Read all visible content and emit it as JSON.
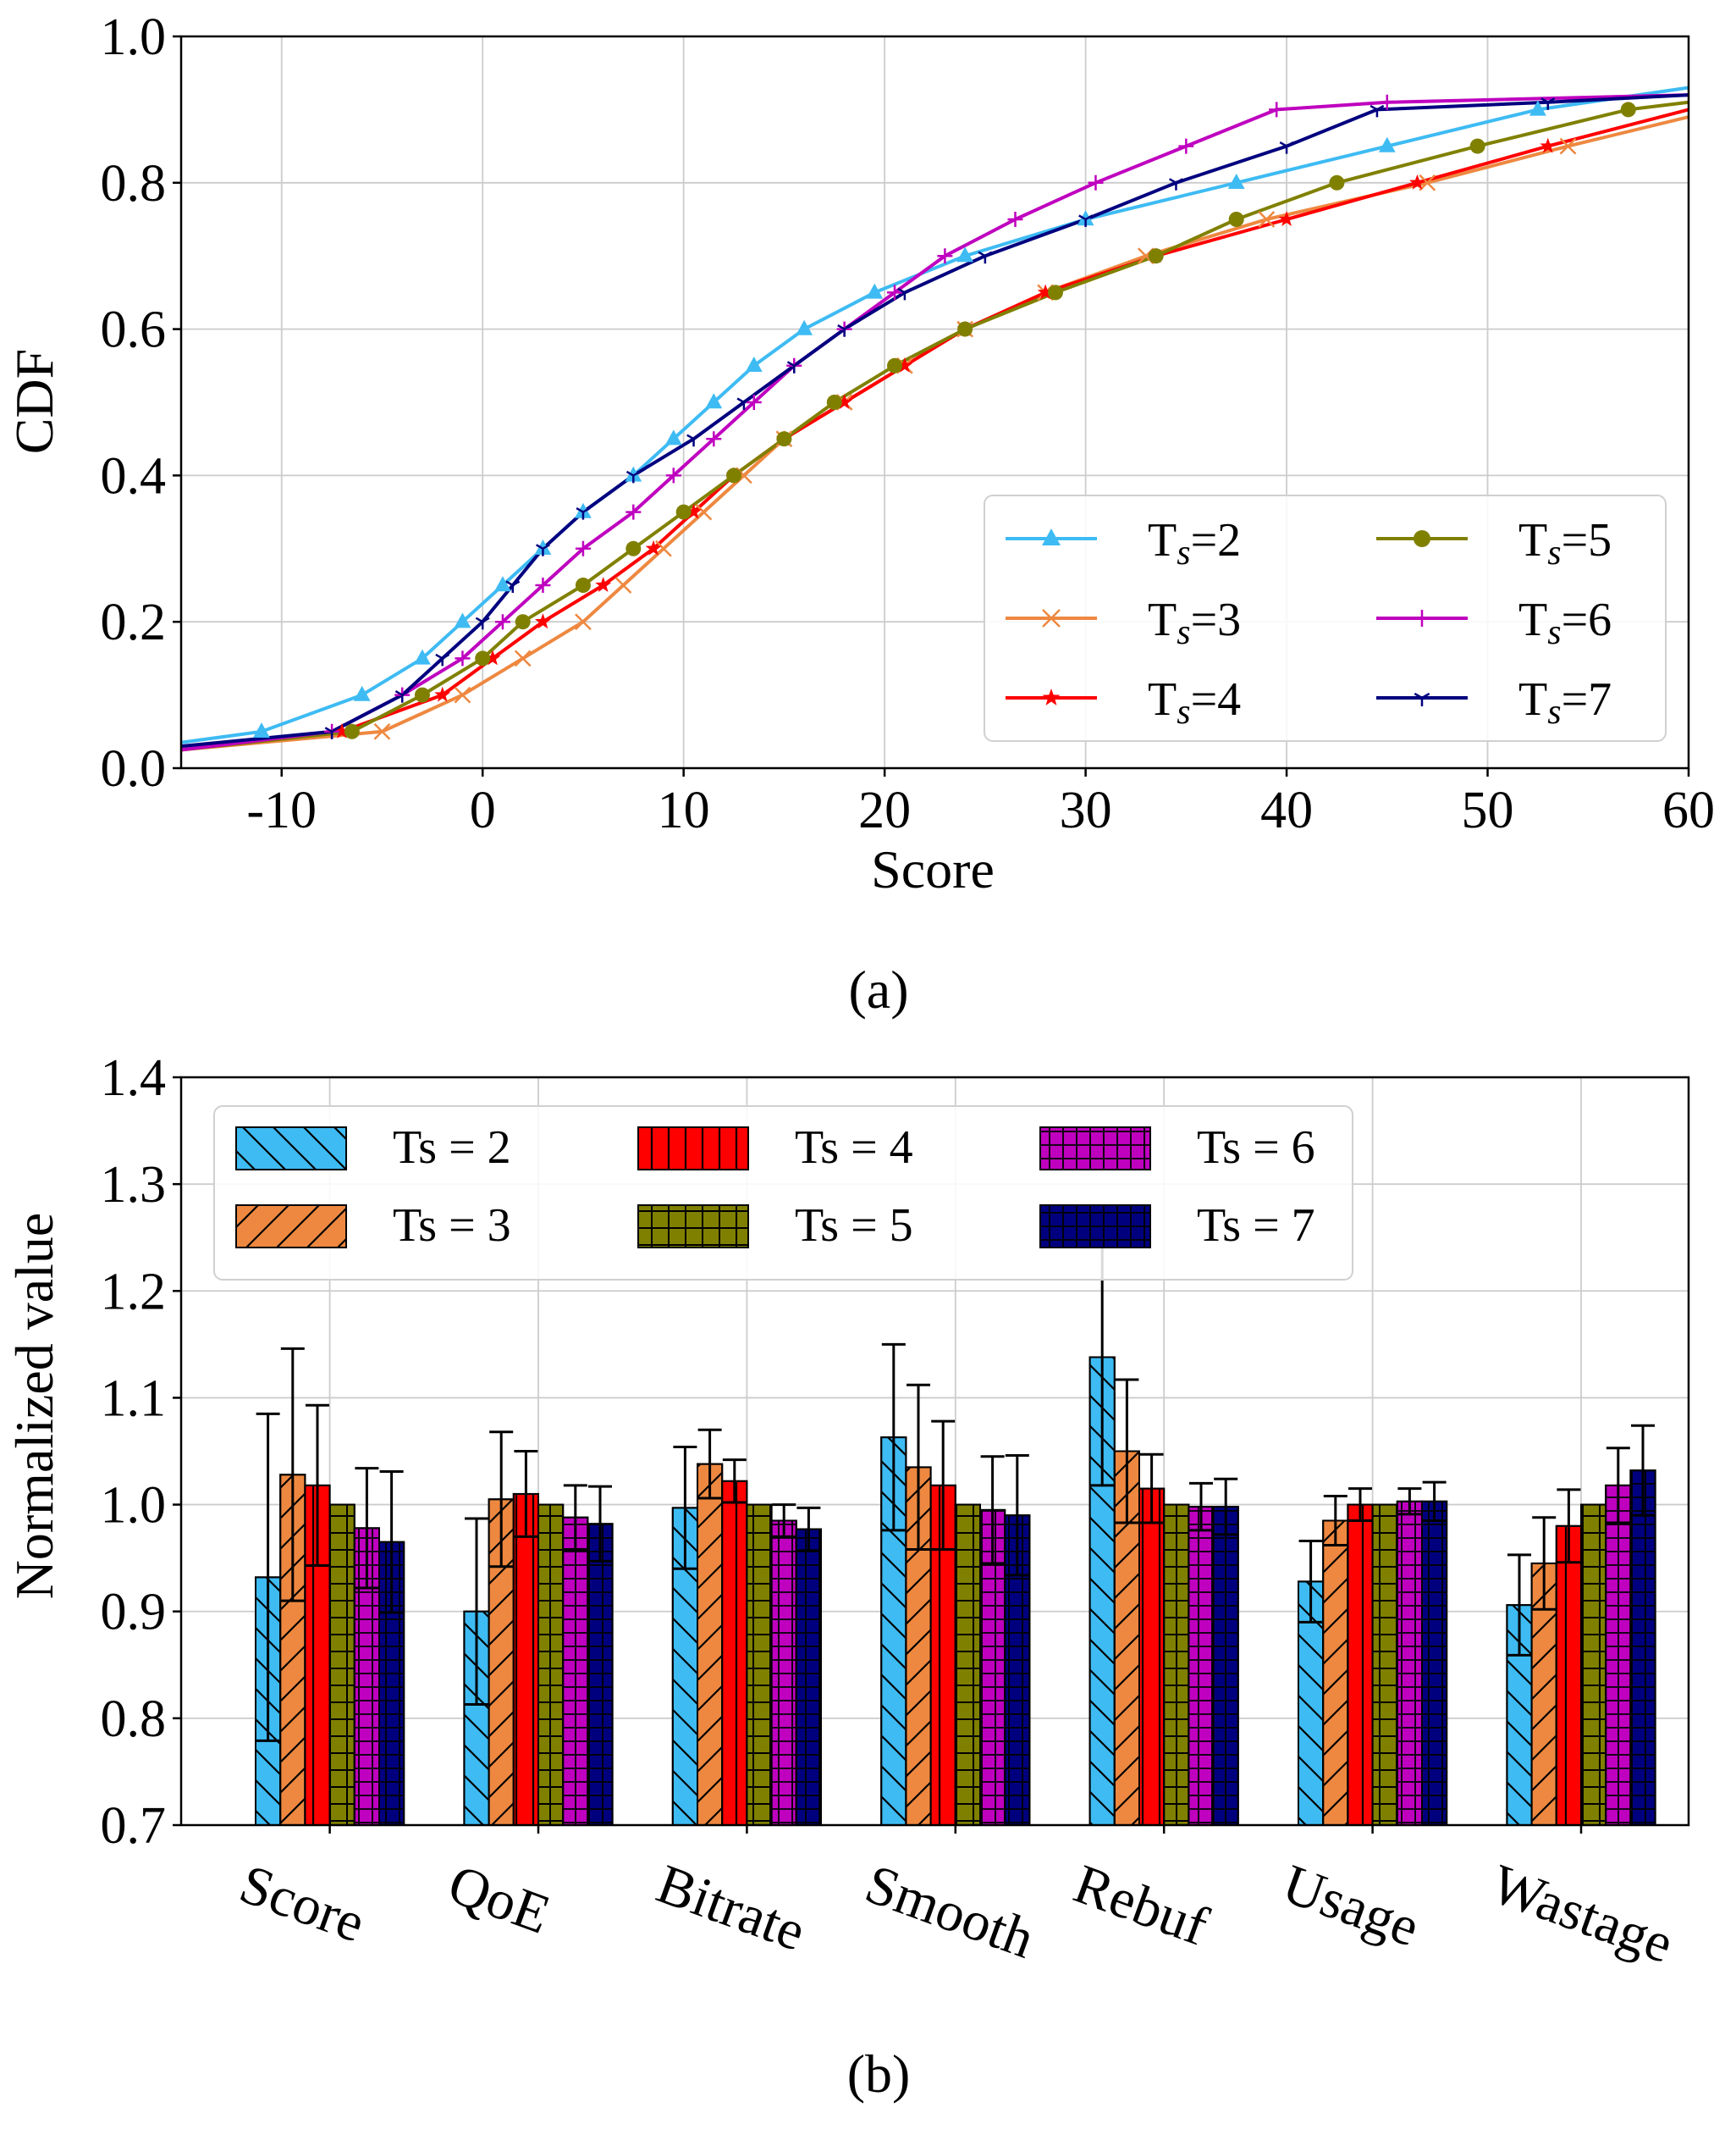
{
  "colors": {
    "ts2": "#3ebbf3",
    "ts3": "#ee8840",
    "ts4": "#ff0000",
    "ts5": "#808000",
    "ts6": "#bf00bf",
    "ts7": "#00007f",
    "grid": "#cccccc"
  },
  "chart_data": [
    {
      "type": "line",
      "caption": "(a)",
      "title": "",
      "xlabel": "Score",
      "ylabel": "CDF",
      "xlim": [
        -15,
        60
      ],
      "ylim": [
        0.0,
        1.0
      ],
      "grid": true,
      "legend_position": "lower-right",
      "xticks": [
        -10,
        0,
        10,
        20,
        30,
        40,
        50,
        60
      ],
      "xtick_labels": [
        "-10",
        "0",
        "10",
        "20",
        "30",
        "40",
        "50",
        "60"
      ],
      "yticks": [
        0.0,
        0.2,
        0.4,
        0.6,
        0.8,
        1.0
      ],
      "ytick_labels": [
        "0.0",
        "0.2",
        "0.4",
        "0.6",
        "0.8",
        "1.0"
      ],
      "series": [
        {
          "key": "ts2",
          "legend_main": "T",
          "legend_sub": "s",
          "legend_rest": "=2",
          "marker": "triangle",
          "x": [
            -15,
            -11,
            -6,
            -3,
            -1,
            1,
            3,
            5,
            7.5,
            9.5,
            11.5,
            13.5,
            16,
            19.5,
            24,
            30,
            37.5,
            45,
            52.5,
            60
          ],
          "y": [
            0.035,
            0.05,
            0.1,
            0.15,
            0.2,
            0.25,
            0.3,
            0.35,
            0.4,
            0.45,
            0.5,
            0.55,
            0.6,
            0.65,
            0.7,
            0.75,
            0.8,
            0.85,
            0.9,
            0.93
          ]
        },
        {
          "key": "ts3",
          "legend_main": "T",
          "legend_sub": "s",
          "legend_rest": "=3",
          "marker": "x",
          "x": [
            -15,
            -5,
            -1,
            2,
            5,
            7,
            9,
            11,
            13,
            15,
            18,
            21,
            24,
            28,
            33,
            39,
            47,
            54,
            60
          ],
          "y": [
            0.025,
            0.05,
            0.1,
            0.15,
            0.2,
            0.25,
            0.3,
            0.35,
            0.4,
            0.45,
            0.5,
            0.55,
            0.6,
            0.65,
            0.7,
            0.75,
            0.8,
            0.85,
            0.89
          ]
        },
        {
          "key": "ts4",
          "legend_main": "T",
          "legend_sub": "s",
          "legend_rest": "=4",
          "marker": "star",
          "x": [
            -15,
            -7,
            -2,
            0.5,
            3,
            6,
            8.5,
            10.5,
            12.5,
            15,
            18,
            21,
            24,
            28,
            33.5,
            40,
            46.5,
            53,
            60
          ],
          "y": [
            0.025,
            0.05,
            0.1,
            0.15,
            0.2,
            0.25,
            0.3,
            0.35,
            0.4,
            0.45,
            0.5,
            0.55,
            0.6,
            0.65,
            0.7,
            0.75,
            0.8,
            0.85,
            0.9
          ]
        },
        {
          "key": "ts5",
          "legend_main": "T",
          "legend_sub": "s",
          "legend_rest": "=5",
          "marker": "circle",
          "x": [
            -15,
            -6.5,
            -3,
            0,
            2,
            5,
            7.5,
            10,
            12.5,
            15,
            17.5,
            20.5,
            24,
            28.5,
            33.5,
            37.5,
            42.5,
            49.5,
            57,
            60
          ],
          "y": [
            0.025,
            0.05,
            0.1,
            0.15,
            0.2,
            0.25,
            0.3,
            0.35,
            0.4,
            0.45,
            0.5,
            0.55,
            0.6,
            0.65,
            0.7,
            0.75,
            0.8,
            0.85,
            0.9,
            0.91
          ]
        },
        {
          "key": "ts6",
          "legend_main": "T",
          "legend_sub": "s",
          "legend_rest": "=6",
          "marker": "plus",
          "x": [
            -15,
            -7.5,
            -4,
            -1,
            1,
            3,
            5,
            7.5,
            9.5,
            11.5,
            13.5,
            15.5,
            18,
            20.5,
            23,
            26.5,
            30.5,
            35,
            39.5,
            45,
            60
          ],
          "y": [
            0.025,
            0.05,
            0.1,
            0.15,
            0.2,
            0.25,
            0.3,
            0.35,
            0.4,
            0.45,
            0.5,
            0.55,
            0.6,
            0.65,
            0.7,
            0.75,
            0.8,
            0.85,
            0.9,
            0.91,
            0.92
          ]
        },
        {
          "key": "ts7",
          "legend_main": "T",
          "legend_sub": "s",
          "legend_rest": "=7",
          "marker": "tri_down",
          "x": [
            -15,
            -7.5,
            -4,
            -2,
            0,
            1.5,
            3,
            5,
            7.5,
            10.5,
            13,
            15.5,
            18,
            21,
            25,
            30,
            34.5,
            40,
            44.5,
            53,
            60
          ],
          "y": [
            0.03,
            0.05,
            0.1,
            0.15,
            0.2,
            0.25,
            0.3,
            0.35,
            0.4,
            0.45,
            0.5,
            0.55,
            0.6,
            0.65,
            0.7,
            0.75,
            0.8,
            0.85,
            0.9,
            0.91,
            0.92
          ]
        }
      ]
    },
    {
      "type": "bar",
      "caption": "(b)",
      "title": "",
      "xlabel": "",
      "ylabel": "Normalized value",
      "ylim": [
        0.7,
        1.4
      ],
      "grid": true,
      "legend_position": "top",
      "yticks": [
        0.7,
        0.8,
        0.9,
        1.0,
        1.1,
        1.2,
        1.3,
        1.4
      ],
      "ytick_labels": [
        "0.7",
        "0.8",
        "0.9",
        "1.0",
        "1.1",
        "1.2",
        "1.3",
        "1.4"
      ],
      "categories": [
        "Score",
        "QoE",
        "Bitrate",
        "Smooth",
        "Rebuf",
        "Usage",
        "Wastage"
      ],
      "series": [
        {
          "key": "ts2",
          "name": "Ts = 2",
          "hatch": "backslash",
          "values": [
            0.932,
            0.9,
            0.997,
            1.063,
            1.138,
            0.928,
            0.906
          ],
          "errors": [
            0.153,
            0.087,
            0.057,
            0.087,
            0.12,
            0.038,
            0.047
          ]
        },
        {
          "key": "ts3",
          "name": "Ts = 3",
          "hatch": "slash",
          "values": [
            1.028,
            1.005,
            1.038,
            1.035,
            1.05,
            0.985,
            0.945
          ],
          "errors": [
            0.118,
            0.063,
            0.032,
            0.077,
            0.067,
            0.023,
            0.043
          ]
        },
        {
          "key": "ts4",
          "name": "Ts = 4",
          "hatch": "vertical",
          "values": [
            1.018,
            1.01,
            1.022,
            1.018,
            1.015,
            1.0,
            0.98
          ],
          "errors": [
            0.075,
            0.04,
            0.02,
            0.06,
            0.032,
            0.015,
            0.034
          ]
        },
        {
          "key": "ts5",
          "name": "Ts = 5",
          "hatch": "grid",
          "values": [
            1.0,
            1.0,
            1.0,
            1.0,
            1.0,
            1.0,
            1.0
          ],
          "errors": [
            0.0,
            0.0,
            0.0,
            0.0,
            0.0,
            0.0,
            0.0
          ]
        },
        {
          "key": "ts6",
          "name": "Ts = 6",
          "hatch": "grid-dense",
          "values": [
            0.978,
            0.988,
            0.985,
            0.995,
            0.998,
            1.003,
            1.018
          ],
          "errors": [
            0.056,
            0.03,
            0.015,
            0.05,
            0.022,
            0.012,
            0.035
          ]
        },
        {
          "key": "ts7",
          "name": "Ts = 7",
          "hatch": "grid-dense",
          "values": [
            0.965,
            0.982,
            0.977,
            0.99,
            0.998,
            1.003,
            1.032
          ],
          "errors": [
            0.066,
            0.035,
            0.02,
            0.056,
            0.026,
            0.018,
            0.042
          ]
        }
      ]
    }
  ]
}
